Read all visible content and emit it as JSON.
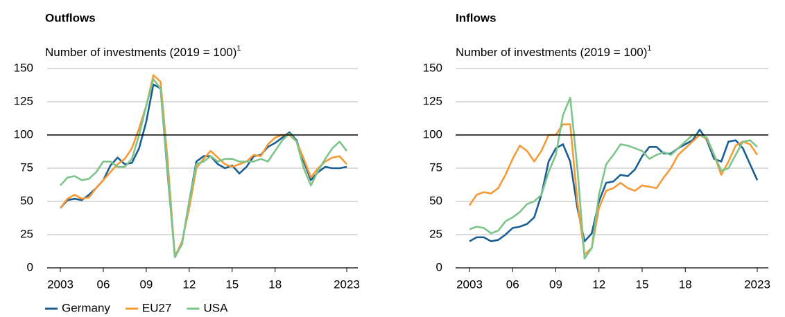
{
  "chart_data": [
    {
      "type": "line",
      "title": "Outflows",
      "subtitle": "Number of investments (2019 = 100)",
      "subtitle_note": "1",
      "x": [
        2003,
        2003.5,
        2004,
        2004.5,
        2005,
        2005.5,
        2006,
        2006.5,
        2007,
        2007.5,
        2008,
        2008.5,
        2009,
        2009.5,
        2010,
        2010.5,
        2011,
        2011.5,
        2012,
        2012.5,
        2013,
        2013.5,
        2014,
        2014.5,
        2015,
        2015.5,
        2016,
        2016.5,
        2017,
        2017.5,
        2018,
        2018.5,
        2019,
        2019.5,
        2020,
        2020.5,
        2021,
        2021.5,
        2022,
        2022.5,
        2023
      ],
      "series": [
        {
          "name": "Germany",
          "color": "#1a5e93",
          "values": [
            45,
            51,
            52,
            51,
            55,
            60,
            66,
            77,
            83,
            78,
            79,
            90,
            110,
            138,
            135,
            70,
            9,
            18,
            50,
            80,
            84,
            84,
            78,
            75,
            77,
            71,
            76,
            84,
            85,
            91,
            94,
            98,
            102,
            96,
            80,
            66,
            72,
            76,
            75,
            75,
            76
          ]
        },
        {
          "name": "EU27",
          "color": "#f59a36",
          "values": [
            45,
            52,
            55,
            52,
            53,
            60,
            66,
            72,
            78,
            82,
            90,
            105,
            122,
            145,
            140,
            80,
            8,
            20,
            45,
            75,
            82,
            88,
            83,
            78,
            76,
            78,
            80,
            85,
            84,
            93,
            98,
            100,
            100,
            95,
            82,
            68,
            75,
            80,
            83,
            84,
            78
          ]
        },
        {
          "name": "USA",
          "color": "#7cc48a",
          "values": [
            62,
            68,
            69,
            66,
            67,
            72,
            80,
            80,
            76,
            76,
            82,
            100,
            122,
            142,
            135,
            72,
            8,
            18,
            50,
            78,
            80,
            84,
            80,
            82,
            82,
            80,
            80,
            80,
            82,
            80,
            88,
            96,
            101,
            95,
            75,
            62,
            73,
            82,
            90,
            95,
            88
          ]
        }
      ],
      "xlim": [
        2003,
        2023
      ],
      "xticks": [
        2003,
        {
          "value": 2006,
          "label": "06"
        },
        {
          "value": 2009,
          "label": "09"
        },
        {
          "value": 2012,
          "label": "12"
        },
        {
          "value": 2015,
          "label": "15"
        },
        {
          "value": 2018,
          "label": "18"
        },
        2023
      ],
      "ylim": [
        0,
        150
      ],
      "yticks": [
        0,
        25,
        50,
        75,
        100,
        125,
        150
      ],
      "grid": true,
      "reference_line": 100,
      "legend": "bottom-left"
    },
    {
      "type": "line",
      "title": "Inflows",
      "subtitle": "Number of investments (2019 = 100)",
      "subtitle_note": "1",
      "x": [
        2003,
        2003.5,
        2004,
        2004.5,
        2005,
        2005.5,
        2006,
        2006.5,
        2007,
        2007.5,
        2008,
        2008.5,
        2009,
        2009.5,
        2010,
        2010.5,
        2011,
        2011.5,
        2012,
        2012.5,
        2013,
        2013.5,
        2014,
        2014.5,
        2015,
        2015.5,
        2016,
        2016.5,
        2017,
        2017.5,
        2018,
        2018.5,
        2019,
        2019.5,
        2020,
        2020.5,
        2021,
        2021.5,
        2022,
        2022.5,
        2023
      ],
      "series": [
        {
          "name": "Germany",
          "color": "#1a5e93",
          "values": [
            20,
            23,
            23,
            20,
            21,
            25,
            30,
            31,
            33,
            38,
            55,
            80,
            90,
            93,
            80,
            45,
            20,
            26,
            50,
            64,
            65,
            70,
            69,
            74,
            84,
            91,
            91,
            86,
            86,
            90,
            93,
            96,
            104,
            96,
            82,
            80,
            95,
            96,
            90,
            78,
            66
          ]
        },
        {
          "name": "EU27",
          "color": "#f59a36",
          "values": [
            47,
            55,
            57,
            56,
            60,
            70,
            82,
            92,
            88,
            80,
            88,
            100,
            100,
            108,
            108,
            50,
            10,
            15,
            45,
            58,
            60,
            64,
            60,
            58,
            62,
            61,
            60,
            68,
            75,
            85,
            90,
            95,
            100,
            97,
            85,
            70,
            80,
            92,
            95,
            93,
            85
          ]
        },
        {
          "name": "USA",
          "color": "#7cc48a",
          "values": [
            29,
            31,
            30,
            26,
            28,
            35,
            38,
            42,
            48,
            50,
            55,
            72,
            85,
            115,
            128,
            75,
            7,
            15,
            55,
            78,
            85,
            93,
            92,
            90,
            88,
            82,
            85,
            87,
            85,
            90,
            95,
            100,
            100,
            98,
            85,
            73,
            75,
            85,
            95,
            96,
            91
          ]
        }
      ],
      "xlim": [
        2003,
        2023
      ],
      "xticks": [
        2003,
        {
          "value": 2006,
          "label": "06"
        },
        {
          "value": 2009,
          "label": "09"
        },
        {
          "value": 2012,
          "label": "12"
        },
        {
          "value": 2015,
          "label": "15"
        },
        {
          "value": 2018,
          "label": "18"
        },
        2023
      ],
      "ylim": [
        0,
        150
      ],
      "yticks": [
        0,
        25,
        50,
        75,
        100,
        125,
        150
      ],
      "grid": true,
      "reference_line": 100
    }
  ]
}
